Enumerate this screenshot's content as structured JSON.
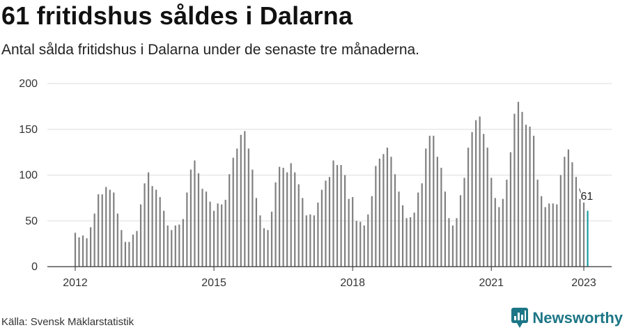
{
  "header": {
    "title": "61 fritidshus såldes i Dalarna",
    "subtitle": "Antal sålda fritidshus i Dalarna under de senaste tre månaderna."
  },
  "footer": {
    "source": "Källa: Svensk Mäklarstatistik",
    "brand": "Newsworthy"
  },
  "colors": {
    "bar": "#808080",
    "highlight": "#1a9aa0",
    "grid": "#dddddd",
    "axis": "#333333",
    "brand": "#1d7686"
  },
  "chart_data": {
    "type": "bar",
    "title": "61 fritidshus såldes i Dalarna",
    "subtitle": "Antal sålda fritidshus i Dalarna under de senaste tre månaderna.",
    "xlabel": "",
    "ylabel": "",
    "ylim": [
      0,
      200
    ],
    "yticks": [
      0,
      50,
      100,
      150,
      200
    ],
    "xticks": [
      "2012",
      "2015",
      "2018",
      "2021",
      "2023"
    ],
    "grid": true,
    "legend": "none",
    "start": "2012-01",
    "end": "2023-01",
    "values": [
      37,
      32,
      34,
      31,
      43,
      58,
      79,
      79,
      87,
      84,
      81,
      58,
      40,
      27,
      27,
      35,
      39,
      68,
      91,
      103,
      88,
      84,
      76,
      61,
      45,
      40,
      45,
      46,
      52,
      81,
      106,
      116,
      102,
      85,
      82,
      71,
      61,
      69,
      68,
      73,
      101,
      119,
      129,
      144,
      148,
      129,
      106,
      75,
      56,
      42,
      40,
      60,
      92,
      109,
      108,
      103,
      113,
      103,
      90,
      75,
      56,
      57,
      56,
      70,
      84,
      94,
      98,
      116,
      111,
      111,
      100,
      74,
      76,
      50,
      49,
      45,
      57,
      77,
      110,
      118,
      123,
      130,
      120,
      101,
      82,
      67,
      53,
      54,
      59,
      81,
      91,
      129,
      143,
      143,
      120,
      108,
      82,
      53,
      45,
      53,
      78,
      97,
      130,
      147,
      160,
      164,
      145,
      130,
      97,
      75,
      65,
      74,
      95,
      125,
      167,
      180,
      169,
      155,
      153,
      143,
      95,
      77,
      65,
      69,
      69,
      68,
      100,
      120,
      128,
      114,
      98,
      74,
      70,
      61
    ],
    "annotation": {
      "label": "61",
      "value": 61
    }
  }
}
